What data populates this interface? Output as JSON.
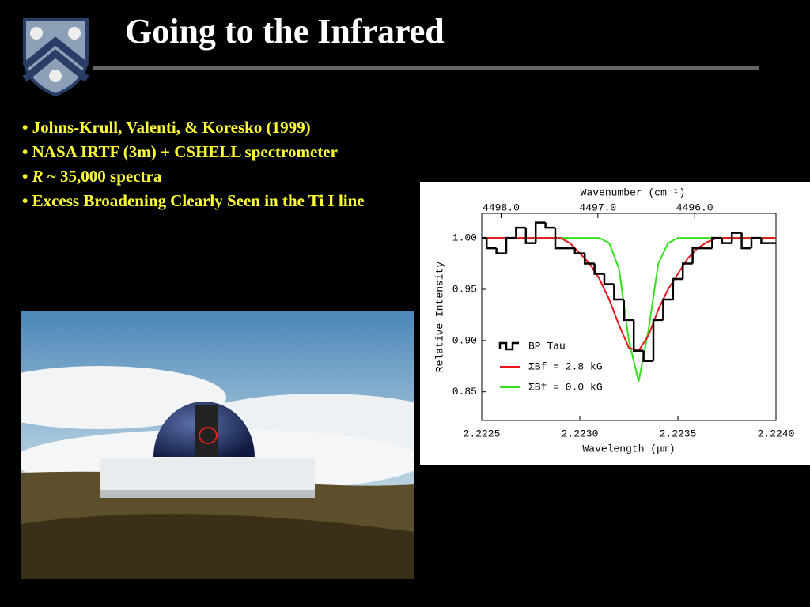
{
  "header": {
    "title": "Going to the Infrared"
  },
  "bullets": [
    {
      "marker": "•",
      "text": "Johns-Krull, Valenti, & Koresko (1999)"
    },
    {
      "marker": "•",
      "text": "NASA IRTF (3m) + CSHELL spectrometer"
    },
    {
      "marker": "•",
      "italic": "R",
      "text": "~ 35,000 spectra"
    },
    {
      "marker": "•",
      "text": "Excess Broadening Clearly Seen in the Ti I line"
    }
  ],
  "chart_data": {
    "type": "line",
    "xlabel": "Wavelength (μm)",
    "ylabel": "Relative Intensity",
    "x2label": "Wavenumber (cm⁻¹)",
    "xlim": [
      2.2225,
      2.224
    ],
    "xticks": [
      2.2225,
      {
        "value": 2.223,
        "label": "2.2230"
      },
      2.2235,
      {
        "value": 2.224,
        "label": "2.2240"
      }
    ],
    "x2lim": [
      4498.2,
      4495.16
    ],
    "x2ticks": [
      {
        "value": 4498,
        "label": "4498.0"
      },
      {
        "value": 4497,
        "label": "4497.0"
      },
      {
        "value": 4496,
        "label": "4496.0"
      }
    ],
    "ylim": [
      0.822,
      1.024
    ],
    "yticks": [
      0.85,
      {
        "value": 0.9,
        "label": "0.90"
      },
      0.95,
      {
        "value": 1,
        "label": "1.00"
      }
    ],
    "x": [
      2.2225,
      2.22255,
      2.2226,
      2.22265,
      2.2227,
      2.22275,
      2.2228,
      2.22285,
      2.2229,
      2.22295,
      2.223,
      2.22305,
      2.2231,
      2.22315,
      2.2232,
      2.22325,
      2.2233,
      2.22335,
      2.2234,
      2.22345,
      2.2235,
      2.22355,
      2.2236,
      2.22365,
      2.2237,
      2.22375,
      2.2238,
      2.22385,
      2.2239,
      2.22395,
      2.224
    ],
    "series": [
      {
        "name": "BP Tau",
        "color": "#000000",
        "step": true,
        "values": [
          1.0,
          0.99,
          0.985,
          1.0,
          1.01,
          0.995,
          1.015,
          1.01,
          0.99,
          0.99,
          0.985,
          0.975,
          0.965,
          0.955,
          0.94,
          0.92,
          0.89,
          0.88,
          0.92,
          0.94,
          0.96,
          0.975,
          0.99,
          0.99,
          1.0,
          0.995,
          1.005,
          0.99,
          1.0,
          0.995,
          0.995
        ]
      },
      {
        "name": "ΣBf = 2.8 kG",
        "color": "#e8141a",
        "values": [
          1.0,
          1.0,
          1.0,
          1.0,
          1.0,
          1.0,
          1.0,
          1.0,
          1.0,
          0.995,
          0.985,
          0.975,
          0.96,
          0.94,
          0.915,
          0.893,
          0.89,
          0.905,
          0.93,
          0.95,
          0.965,
          0.98,
          0.99,
          0.996,
          1.0,
          1.0,
          1.0,
          1.0,
          1.0,
          1.0,
          1.0
        ]
      },
      {
        "name": "ΣBf = 0.0 kG",
        "color": "#33e01a",
        "values": [
          1.0,
          1.0,
          1.0,
          1.0,
          1.0,
          1.0,
          1.0,
          1.0,
          1.0,
          1.0,
          1.0,
          1.0,
          1.0,
          0.995,
          0.97,
          0.9,
          0.86,
          0.91,
          0.975,
          0.995,
          1.0,
          1.0,
          1.0,
          1.0,
          1.0,
          1.0,
          1.0,
          1.0,
          1.0,
          1.0,
          1.0
        ]
      }
    ]
  }
}
